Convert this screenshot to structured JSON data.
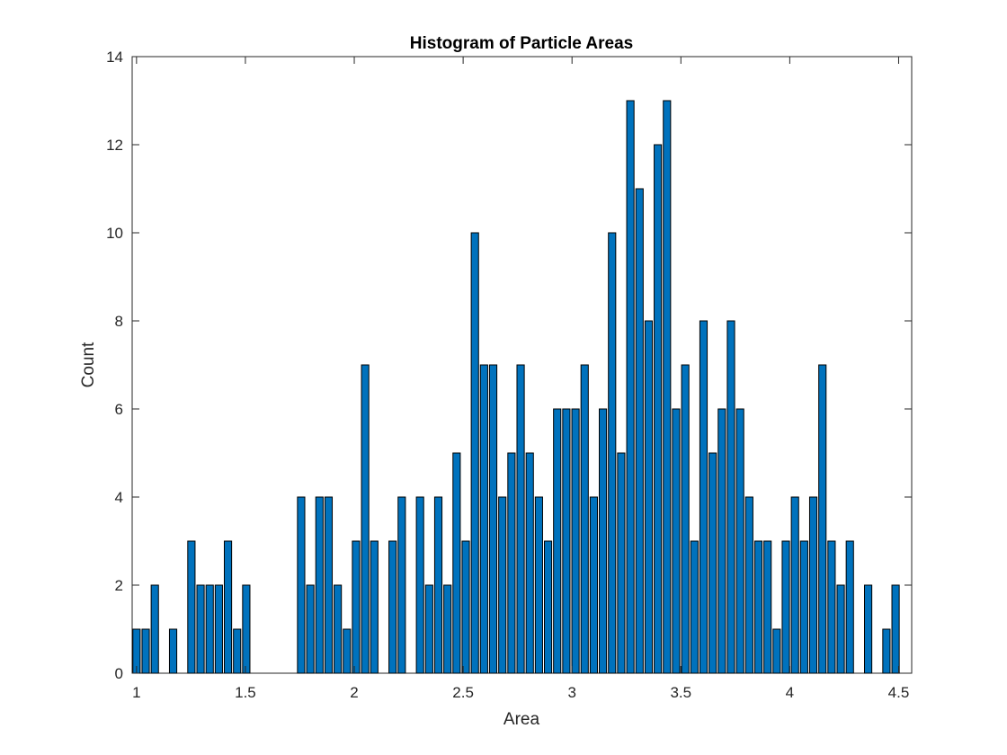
{
  "chart_data": {
    "type": "bar",
    "title": "Histogram of Particle Areas",
    "xlabel": "Area",
    "ylabel": "Count",
    "xlim": [
      0.98,
      4.56
    ],
    "ylim": [
      0,
      14
    ],
    "xticks": [
      "1",
      "1.5",
      "2",
      "2.5",
      "3",
      "3.5",
      "4",
      "4.5"
    ],
    "yticks": [
      "0",
      "2",
      "4",
      "6",
      "8",
      "10",
      "12",
      "14"
    ],
    "bin_start": 1.0,
    "bin_width": 0.042,
    "counts": [
      1,
      1,
      2,
      0,
      1,
      0,
      3,
      2,
      2,
      2,
      3,
      1,
      2,
      0,
      0,
      0,
      0,
      0,
      4,
      2,
      4,
      4,
      2,
      1,
      3,
      7,
      3,
      0,
      3,
      4,
      0,
      4,
      2,
      4,
      2,
      5,
      3,
      10,
      7,
      7,
      4,
      5,
      7,
      5,
      4,
      3,
      6,
      6,
      6,
      7,
      4,
      6,
      10,
      5,
      13,
      11,
      8,
      12,
      13,
      6,
      7,
      3,
      8,
      5,
      6,
      8,
      6,
      4,
      3,
      3,
      1,
      3,
      4,
      3,
      4,
      7,
      3,
      2,
      3,
      0,
      2,
      0,
      1,
      2
    ],
    "grid": false,
    "legend": "none",
    "bar_color": "#0072BD",
    "edge_color": "#000000"
  }
}
